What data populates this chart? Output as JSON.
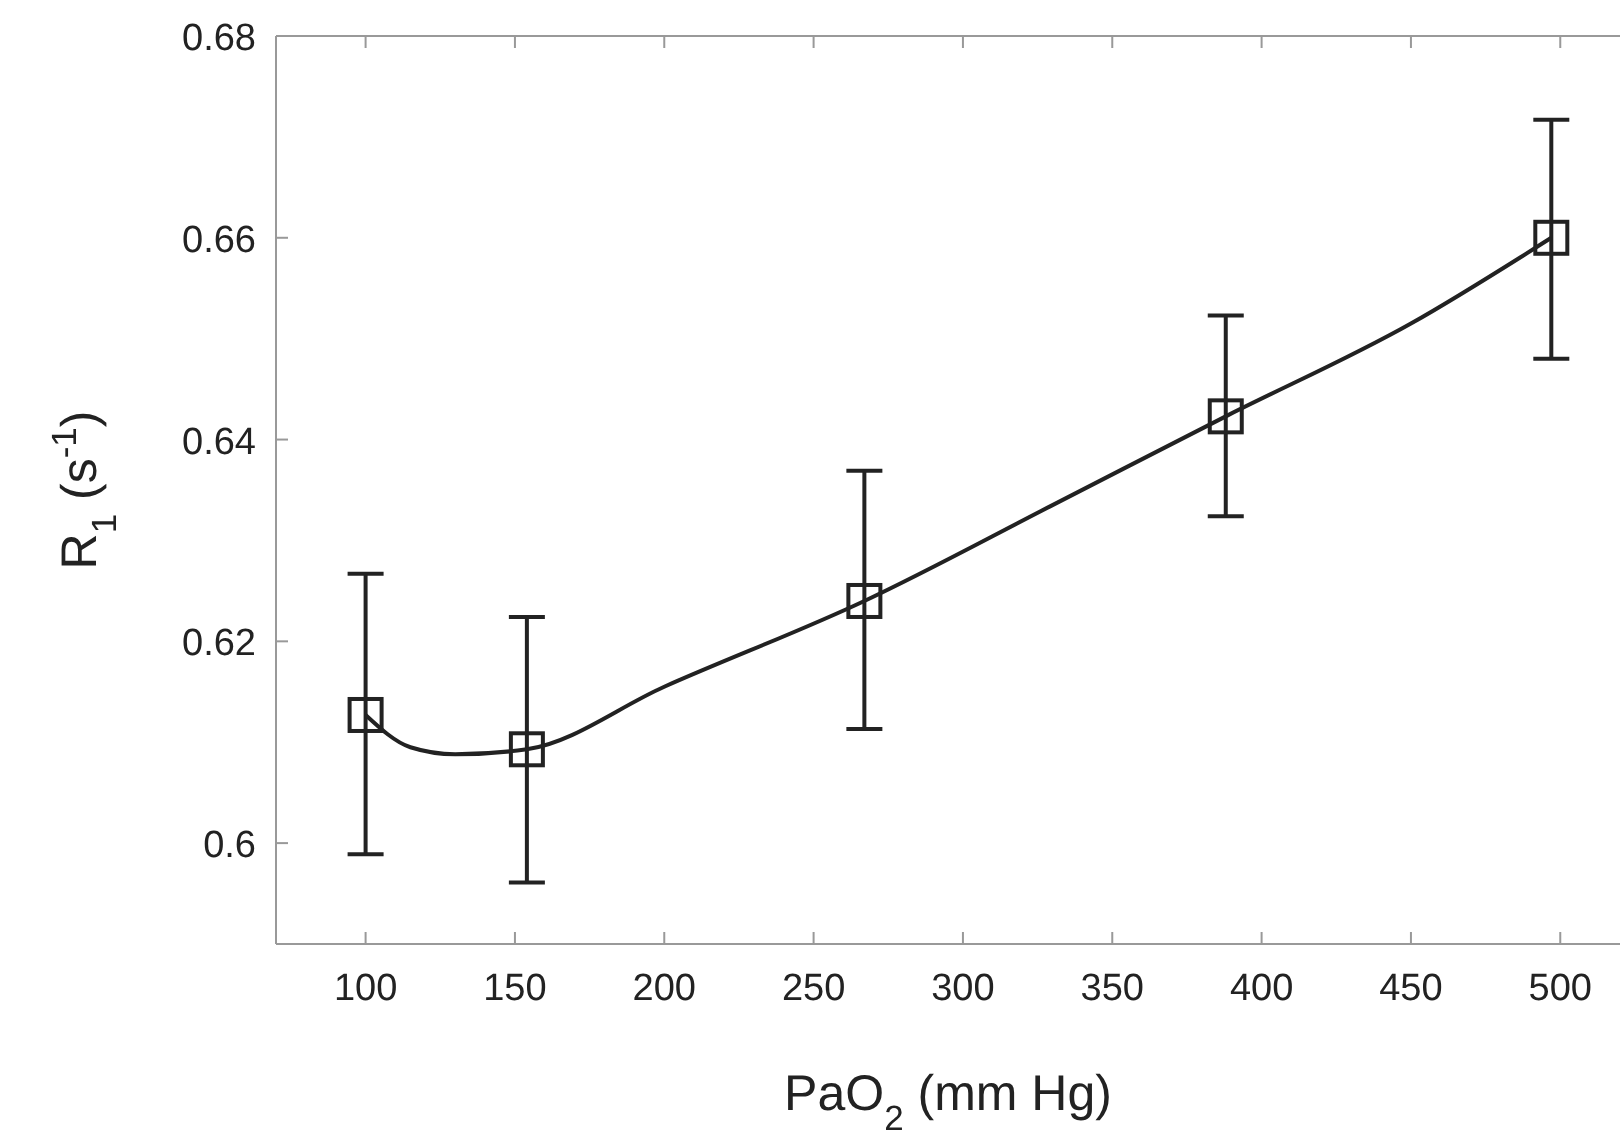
{
  "chart_data": {
    "type": "scatter",
    "xlabel": "PaO$_{2}$ (mm Hg)",
    "ylabel": "R$_{1}$ (s$^{-1}$)",
    "xlim": [
      70,
      520
    ],
    "ylim": [
      0.59,
      0.68
    ],
    "xticks": [
      100,
      150,
      200,
      250,
      300,
      350,
      400,
      450,
      500
    ],
    "yticks": [
      0.6,
      0.62,
      0.64,
      0.66,
      0.68
    ],
    "grid": false,
    "series": [
      {
        "color": "#222222",
        "marker": "square",
        "x": [
          100,
          154,
          267,
          388,
          497
        ],
        "values": [
          0.6127,
          0.6093,
          0.624,
          0.6423,
          0.66
        ],
        "errors": [
          [
            0.5989,
            0.6267
          ],
          [
            0.5961,
            0.6224
          ],
          [
            0.6113,
            0.6369
          ],
          [
            0.6324,
            0.6523
          ],
          [
            0.648,
            0.6717
          ]
        ]
      },
      {
        "type": "line",
        "color": "#222222",
        "line_style": "solid",
        "x": [
          100,
          115,
          130,
          154,
          200,
          267,
          330,
          388,
          450,
          497
        ],
        "values": [
          0.6127,
          0.6095,
          0.6088,
          0.6093,
          0.6155,
          0.624,
          0.6335,
          0.6423,
          0.6515,
          0.66
        ]
      }
    ]
  }
}
